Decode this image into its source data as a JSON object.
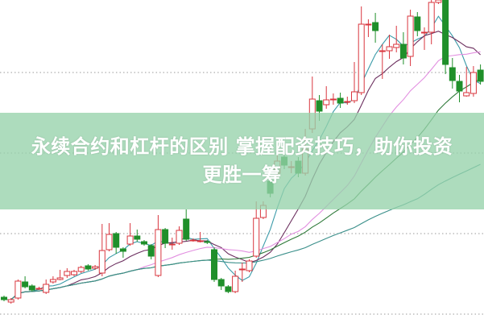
{
  "headline": {
    "lines": [
      "永续合约和杠杆的区别 掌握配资技巧，助你投资",
      "更胜一筹"
    ]
  },
  "colors": {
    "up": "#d9363e",
    "down": "#1f8f2a",
    "banner": "#96d2aa",
    "grid": "#999999",
    "ma": [
      "#3a9aa8",
      "#6b2e5e",
      "#e28fe0",
      "#2f7a3a",
      "#3a8f8a"
    ]
  },
  "chart_data": {
    "type": "candlestick",
    "title": "",
    "xlabel": "",
    "ylabel": "",
    "grid": "horizontal-dotted",
    "moving_averages": [
      5,
      10,
      20,
      30,
      60
    ],
    "candles_ohlc": [
      [
        31,
        33,
        26,
        28
      ],
      [
        25,
        30,
        23,
        28
      ],
      [
        30,
        53,
        28,
        51
      ],
      [
        50,
        57,
        42,
        44
      ],
      [
        45,
        47,
        38,
        40
      ],
      [
        42,
        44,
        40,
        42
      ],
      [
        37,
        53,
        35,
        47
      ],
      [
        50,
        57,
        48,
        53
      ],
      [
        53,
        65,
        52,
        55
      ],
      [
        58,
        67,
        55,
        63
      ],
      [
        59,
        65,
        57,
        63
      ],
      [
        63,
        70,
        61,
        68
      ],
      [
        70,
        72,
        64,
        66
      ],
      [
        67,
        71,
        65,
        69
      ],
      [
        61,
        122,
        57,
        89
      ],
      [
        90,
        123,
        88,
        109
      ],
      [
        110,
        112,
        85,
        93
      ],
      [
        91,
        93,
        80,
        88
      ],
      [
        97,
        123,
        95,
        107
      ],
      [
        107,
        115,
        100,
        103
      ],
      [
        100,
        102,
        95,
        97
      ],
      [
        95,
        97,
        78,
        82
      ],
      [
        58,
        133,
        56,
        115
      ],
      [
        115,
        117,
        92,
        98
      ],
      [
        97,
        105,
        90,
        97
      ],
      [
        98,
        119,
        96,
        114
      ],
      [
        128,
        140,
        101,
        103
      ],
      [
        102,
        104,
        100,
        102
      ],
      [
        101,
        112,
        99,
        101
      ],
      [
        100,
        102,
        97,
        99
      ],
      [
        90,
        93,
        50,
        53
      ],
      [
        53,
        55,
        40,
        45
      ],
      [
        44,
        46,
        36,
        38
      ],
      [
        38,
        64,
        36,
        57
      ],
      [
        65,
        74,
        50,
        66
      ],
      [
        64,
        78,
        62,
        76
      ],
      [
        82,
        150,
        80,
        129
      ],
      [
        130,
        150,
        128,
        145
      ],
      [
        175,
        185,
        155,
        160
      ],
      [
        185,
        215,
        180,
        200
      ],
      [
        205,
        210,
        190,
        195
      ],
      [
        193,
        200,
        185,
        193
      ],
      [
        200,
        205,
        180,
        185
      ],
      [
        185,
        240,
        182,
        215
      ],
      [
        240,
        305,
        235,
        277
      ],
      [
        275,
        282,
        250,
        262
      ],
      [
        270,
        293,
        265,
        276
      ],
      [
        277,
        284,
        270,
        277
      ],
      [
        278,
        285,
        266,
        272
      ],
      [
        274,
        280,
        270,
        274
      ],
      [
        275,
        323,
        272,
        286
      ],
      [
        285,
        392,
        282,
        370
      ],
      [
        370,
        376,
        354,
        370
      ],
      [
        372,
        384,
        347,
        362
      ],
      [
        337,
        345,
        302,
        337
      ],
      [
        337,
        357,
        327,
        342
      ],
      [
        341,
        368,
        335,
        345
      ],
      [
        345,
        360,
        320,
        328
      ],
      [
        330,
        388,
        318,
        380
      ],
      [
        379,
        385,
        355,
        362
      ],
      [
        360,
        366,
        338,
        360
      ],
      [
        360,
        400,
        345,
        397
      ],
      [
        397,
        402,
        395,
        400
      ],
      [
        400,
        402,
        308,
        320
      ],
      [
        316,
        328,
        290,
        300
      ],
      [
        299,
        307,
        273,
        287
      ],
      [
        281,
        317,
        280,
        285
      ],
      [
        284,
        318,
        280,
        310
      ],
      [
        313,
        320,
        295,
        299
      ]
    ]
  }
}
